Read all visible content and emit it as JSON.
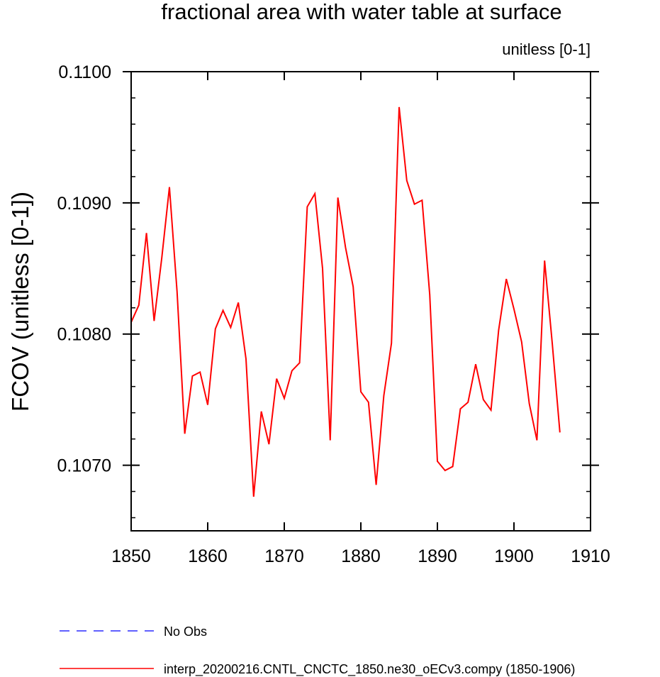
{
  "chart_data": {
    "type": "line",
    "title": "fractional area with water table at surface",
    "units_label": "unitless [0-1]",
    "ylabel": "FCOV  (unitless [0-1])",
    "xlabel": "",
    "xlim": [
      1850,
      1910
    ],
    "ylim": [
      0.1065,
      0.11
    ],
    "x_ticks": [
      1850,
      1860,
      1870,
      1880,
      1890,
      1900,
      1910
    ],
    "x_tick_labels": [
      "1850",
      "1860",
      "1870",
      "1880",
      "1890",
      "1900",
      "1910"
    ],
    "y_ticks": [
      0.107,
      0.108,
      0.109,
      0.11
    ],
    "y_tick_labels": [
      "0.1070",
      "0.1080",
      "0.1090",
      "0.1100"
    ],
    "series": [
      {
        "name": "No Obs",
        "color": "#0000ff",
        "dash": "dashed",
        "x": [],
        "y": []
      },
      {
        "name": "interp_20200216.CNTL_CNCTC_1850.ne30_oECv3.compy (1850-1906)",
        "color": "#ff0000",
        "dash": "solid",
        "x": [
          1850,
          1851,
          1852,
          1853,
          1854,
          1855,
          1856,
          1857,
          1858,
          1859,
          1860,
          1861,
          1862,
          1863,
          1864,
          1865,
          1866,
          1867,
          1868,
          1869,
          1870,
          1871,
          1872,
          1873,
          1874,
          1875,
          1876,
          1877,
          1878,
          1879,
          1880,
          1881,
          1882,
          1883,
          1884,
          1885,
          1886,
          1887,
          1888,
          1889,
          1890,
          1891,
          1892,
          1893,
          1894,
          1895,
          1896,
          1897,
          1898,
          1899,
          1900,
          1901,
          1902,
          1903,
          1904,
          1905,
          1906
        ],
        "y": [
          0.10809,
          0.10822,
          0.10877,
          0.1081,
          0.10858,
          0.10912,
          0.10832,
          0.10724,
          0.10768,
          0.10771,
          0.10746,
          0.10804,
          0.10818,
          0.10805,
          0.10824,
          0.10781,
          0.10676,
          0.10741,
          0.10716,
          0.10766,
          0.10751,
          0.10772,
          0.10778,
          0.10897,
          0.10907,
          0.1085,
          0.10719,
          0.10904,
          0.10866,
          0.10836,
          0.10756,
          0.10748,
          0.10685,
          0.10753,
          0.10793,
          0.10973,
          0.10917,
          0.10899,
          0.10902,
          0.1083,
          0.10703,
          0.10696,
          0.10699,
          0.10743,
          0.10748,
          0.10777,
          0.1075,
          0.10742,
          0.10803,
          0.10842,
          0.10819,
          0.10794,
          0.10747,
          0.10719,
          0.10856,
          0.10793,
          0.10725
        ]
      }
    ]
  }
}
